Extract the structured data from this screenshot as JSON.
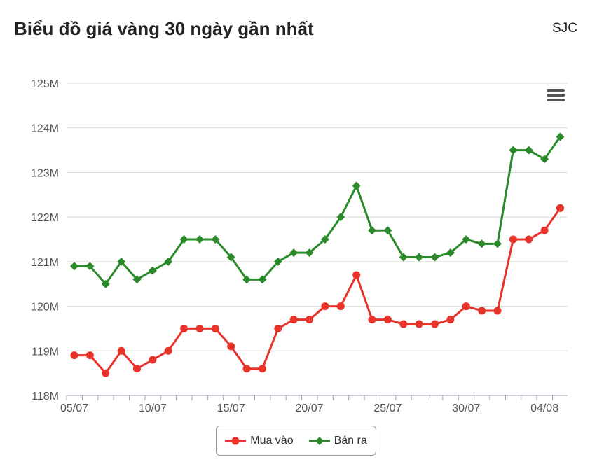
{
  "header": {
    "title": "Biểu đồ giá vàng 30 ngày gần nhất",
    "source": "SJC"
  },
  "chart_data": {
    "type": "line",
    "title": "Biểu đồ giá vàng 30 ngày gần nhất",
    "x": [
      "05/07",
      "06/07",
      "07/07",
      "08/07",
      "09/07",
      "10/07",
      "11/07",
      "12/07",
      "13/07",
      "14/07",
      "15/07",
      "16/07",
      "17/07",
      "18/07",
      "19/07",
      "20/07",
      "21/07",
      "22/07",
      "23/07",
      "24/07",
      "25/07",
      "26/07",
      "27/07",
      "28/07",
      "29/07",
      "30/07",
      "31/07",
      "01/08",
      "02/08",
      "03/08",
      "04/08",
      "05/08"
    ],
    "x_tick_labels": [
      "05/07",
      "10/07",
      "15/07",
      "20/07",
      "25/07",
      "30/07",
      "04/08"
    ],
    "y_tick_labels": [
      "118M",
      "119M",
      "120M",
      "121M",
      "122M",
      "123M",
      "124M",
      "125M"
    ],
    "ylim": [
      118,
      125
    ],
    "y_unit": "M",
    "grid": true,
    "legend_position": "bottom",
    "series": [
      {
        "name": "Mua vào",
        "color": "#e8332b",
        "marker": "circle",
        "values": [
          118.9,
          118.9,
          118.5,
          119.0,
          118.6,
          118.8,
          119.0,
          119.5,
          119.5,
          119.5,
          119.1,
          118.6,
          118.6,
          119.5,
          119.7,
          119.7,
          120.0,
          120.0,
          120.7,
          119.7,
          119.7,
          119.6,
          119.6,
          119.6,
          119.7,
          120.0,
          119.9,
          119.9,
          121.5,
          121.5,
          121.7,
          122.2
        ]
      },
      {
        "name": "Bán ra",
        "color": "#2a8a2a",
        "marker": "diamond",
        "values": [
          120.9,
          120.9,
          120.5,
          121.0,
          120.6,
          120.8,
          121.0,
          121.5,
          121.5,
          121.5,
          121.1,
          120.6,
          120.6,
          121.0,
          121.2,
          121.2,
          121.5,
          122.0,
          122.7,
          121.7,
          121.7,
          121.1,
          121.1,
          121.1,
          121.2,
          121.5,
          121.4,
          121.4,
          123.5,
          123.5,
          123.3,
          123.8
        ]
      }
    ]
  },
  "menu": {
    "icon": "hamburger-menu-icon"
  }
}
